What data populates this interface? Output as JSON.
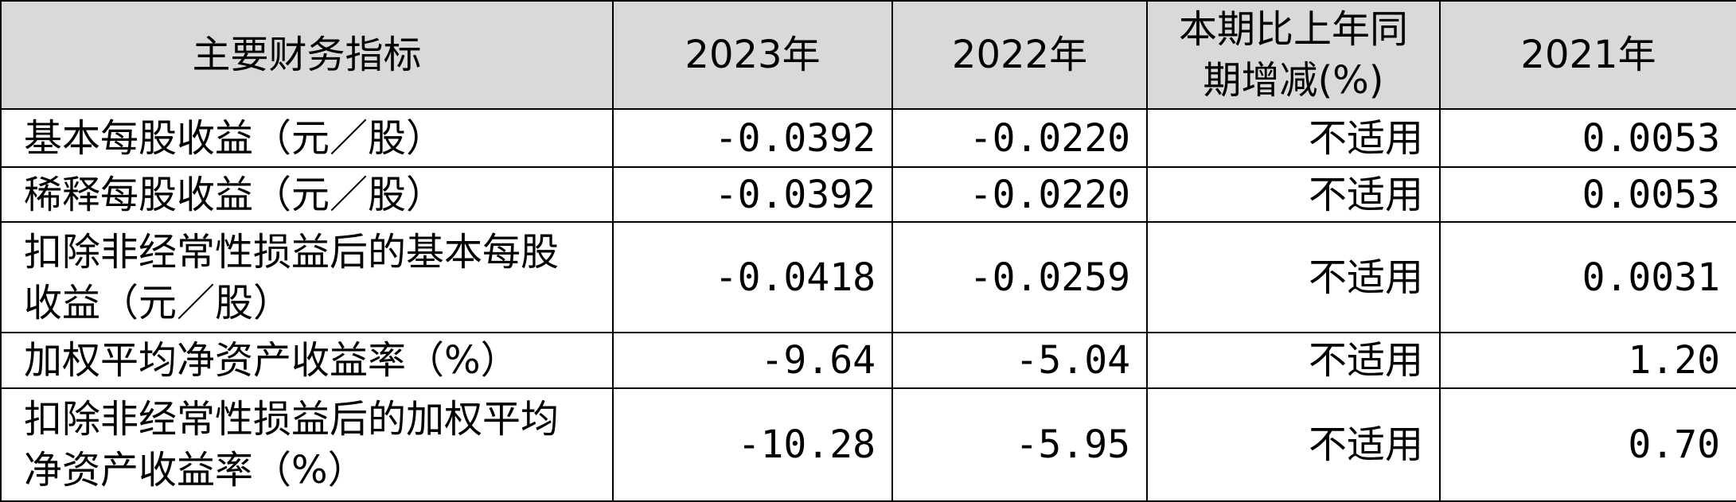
{
  "table": {
    "header": [
      "主要财务指标",
      "2023年",
      "2022年",
      "本期比上年同期增减(%)",
      "2021年"
    ],
    "rows": [
      [
        "基本每股收益（元／股）",
        "-0.0392",
        "-0.0220",
        "不适用",
        "0.0053"
      ],
      [
        "稀释每股收益（元／股）",
        "-0.0392",
        "-0.0220",
        "不适用",
        "0.0053"
      ],
      [
        "扣除非经常性损益后的基本每股收益（元／股）",
        "-0.0418",
        "-0.0259",
        "不适用",
        "0.0031"
      ],
      [
        "加权平均净资产收益率（%）",
        "-9.64",
        "-5.04",
        "不适用",
        "1.20"
      ],
      [
        "扣除非经常性损益后的加权平均净资产收益率（%）",
        "-10.28",
        "-5.95",
        "不适用",
        "0.70"
      ]
    ]
  }
}
